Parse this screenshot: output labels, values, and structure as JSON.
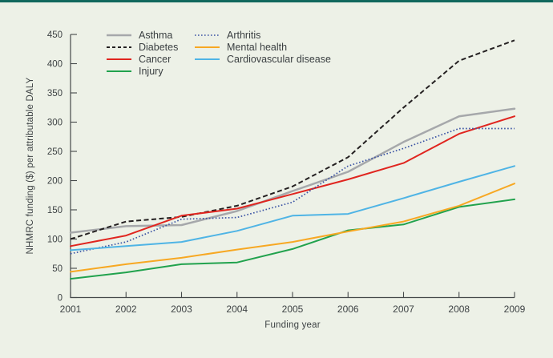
{
  "figure": {
    "background_color": "#edf1e7",
    "top_border_color": "#11685d",
    "axis_color": "#45494a",
    "text_color": "#3e4345"
  },
  "chart_data": {
    "type": "line",
    "title": "",
    "xlabel": "Funding year",
    "ylabel": "NHMRC funding ($) per attributable DALY",
    "x": [
      "2001",
      "2002",
      "2003",
      "2004",
      "2005",
      "2006",
      "2007",
      "2008",
      "2009"
    ],
    "ylim": [
      0,
      450
    ],
    "ytick_step": 50,
    "grid": false,
    "legend_position": "top-left-two-columns",
    "legend_columns": [
      [
        "Asthma",
        "Diabetes",
        "Cancer",
        "Injury"
      ],
      [
        "Arthritis",
        "Mental health",
        "Cardiovascular disease"
      ]
    ],
    "series": [
      {
        "name": "Asthma",
        "color": "#a6a8ab",
        "style": "solid",
        "values": [
          111,
          122,
          124,
          148,
          182,
          215,
          266,
          310,
          323
        ]
      },
      {
        "name": "Diabetes",
        "color": "#242021",
        "style": "dashed",
        "values": [
          100,
          130,
          138,
          157,
          190,
          240,
          325,
          405,
          440
        ]
      },
      {
        "name": "Cancer",
        "color": "#e0251f",
        "style": "solid",
        "values": [
          88,
          106,
          140,
          152,
          177,
          202,
          230,
          280,
          310
        ]
      },
      {
        "name": "Injury",
        "color": "#21a24d",
        "style": "solid",
        "values": [
          32,
          43,
          57,
          60,
          83,
          115,
          125,
          155,
          168
        ]
      },
      {
        "name": "Arthritis",
        "color": "#3a53a4",
        "style": "dotted",
        "values": [
          75,
          95,
          134,
          137,
          163,
          225,
          255,
          289,
          289
        ]
      },
      {
        "name": "Mental health",
        "color": "#f7a823",
        "style": "solid",
        "values": [
          44,
          57,
          68,
          82,
          95,
          113,
          130,
          157,
          195
        ]
      },
      {
        "name": "Cardiovascular disease",
        "color": "#4fb4e5",
        "style": "solid",
        "values": [
          81,
          88,
          95,
          114,
          140,
          143,
          170,
          198,
          225
        ]
      }
    ]
  }
}
